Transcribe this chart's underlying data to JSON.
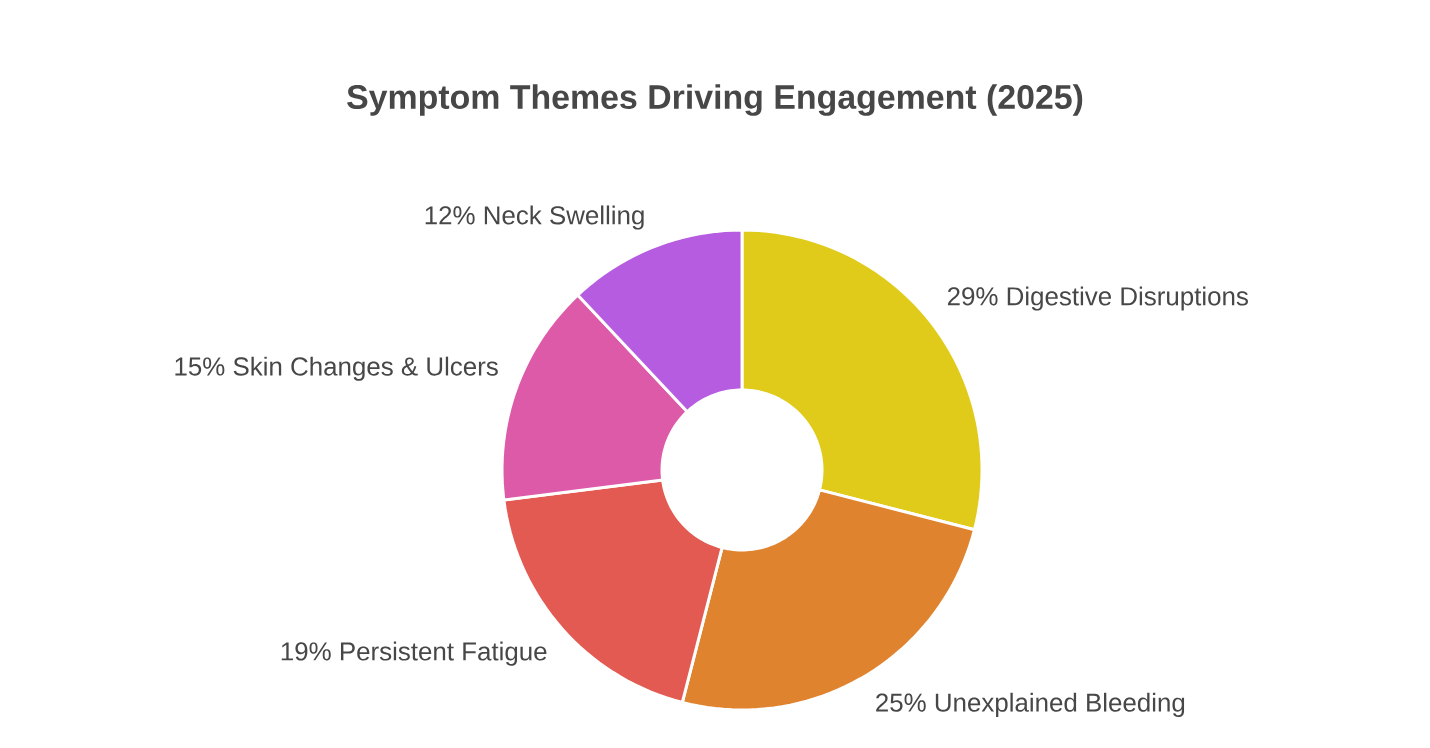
{
  "chart_data": {
    "type": "donut",
    "title": "Symptom Themes Driving Engagement (2025)",
    "categories": [
      "Digestive Disruptions",
      "Unexplained Bleeding",
      "Persistent Fatigue",
      "Skin Changes & Ulcers",
      "Neck Swelling"
    ],
    "values": [
      29,
      25,
      19,
      15,
      12
    ],
    "value_labels": [
      "29%",
      "25%",
      "19%",
      "15%",
      "12%"
    ],
    "colors": [
      "#e0cb1b",
      "#e0832f",
      "#e35a52",
      "#dd5aa8",
      "#b65ce0"
    ]
  }
}
